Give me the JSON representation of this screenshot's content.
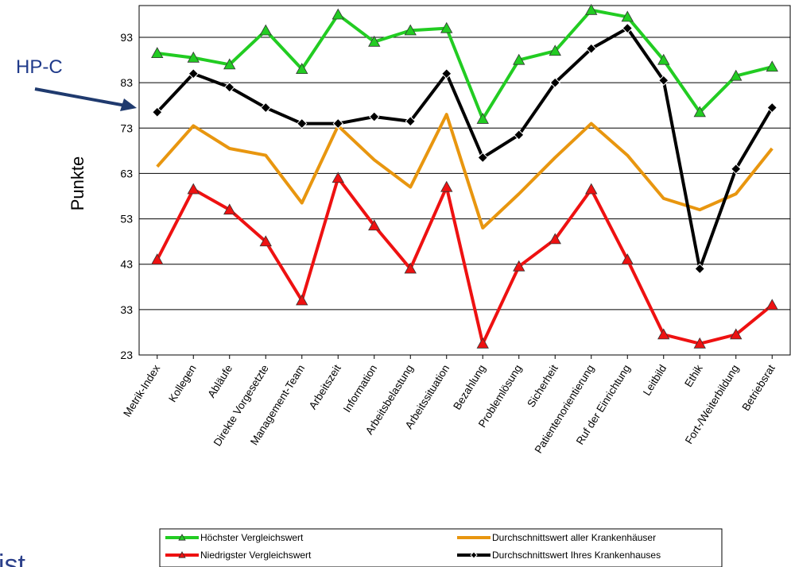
{
  "chart_data": {
    "type": "line",
    "ylabel": "Punkte",
    "ylim": [
      23,
      100
    ],
    "yticks": [
      23,
      33,
      43,
      53,
      63,
      73,
      83,
      93
    ],
    "grid": true,
    "legend_position": "bottom",
    "categories": [
      "Metrik-Index",
      "Kollegen",
      "Abläufe",
      "Direkte Vorgesetzte",
      "Management-Team",
      "Arbeitszeit",
      "Information",
      "Arbeitsbelastung",
      "Arbeitssituation",
      "Bezahlung",
      "Problemlösung",
      "Sicherheit",
      "Patientenorientierung",
      "Ruf der Einrichtung",
      "Leitbild",
      "Ethik",
      "Fort-/Weiterbildung",
      "Betriebsrat"
    ],
    "series": [
      {
        "name": "Höchster Vergleichswert",
        "color": "#22cc22",
        "marker": "triangle",
        "values": [
          89.5,
          88.5,
          87,
          94.5,
          86,
          98,
          92,
          94.5,
          95,
          75,
          88,
          90,
          99,
          97.5,
          88,
          76.5,
          84.5,
          86.5
        ]
      },
      {
        "name": "Durchschnittswert aller Krankenhäuser",
        "color": "#e8960f",
        "marker": "none",
        "values": [
          64.5,
          73.5,
          68.5,
          67,
          56.5,
          73.5,
          66,
          60,
          76,
          51,
          58.5,
          66.5,
          74,
          67,
          57.5,
          55,
          58.5,
          68.5
        ]
      },
      {
        "name": "Niedrigster Vergleichswert",
        "color": "#ee1111",
        "marker": "triangle",
        "values": [
          44,
          59.5,
          55,
          48,
          35,
          62,
          51.5,
          42,
          60,
          25.5,
          42.5,
          48.5,
          59.5,
          44,
          27.5,
          25.5,
          27.5,
          34
        ]
      },
      {
        "name": "Durchschnittswert Ihres Krankenhauses",
        "color": "#000000",
        "marker": "diamond",
        "values": [
          76.5,
          85,
          82,
          77.5,
          74,
          74,
          75.5,
          74.5,
          85,
          66.5,
          71.5,
          83,
          90.5,
          95,
          83.5,
          42,
          64,
          77.5
        ]
      }
    ],
    "annotations": [
      {
        "text": "HP-C",
        "points_to_series": "Durchschnittswert Ihres Krankenhauses",
        "category": "Metrik-Index"
      }
    ]
  },
  "partial_text": "ist"
}
